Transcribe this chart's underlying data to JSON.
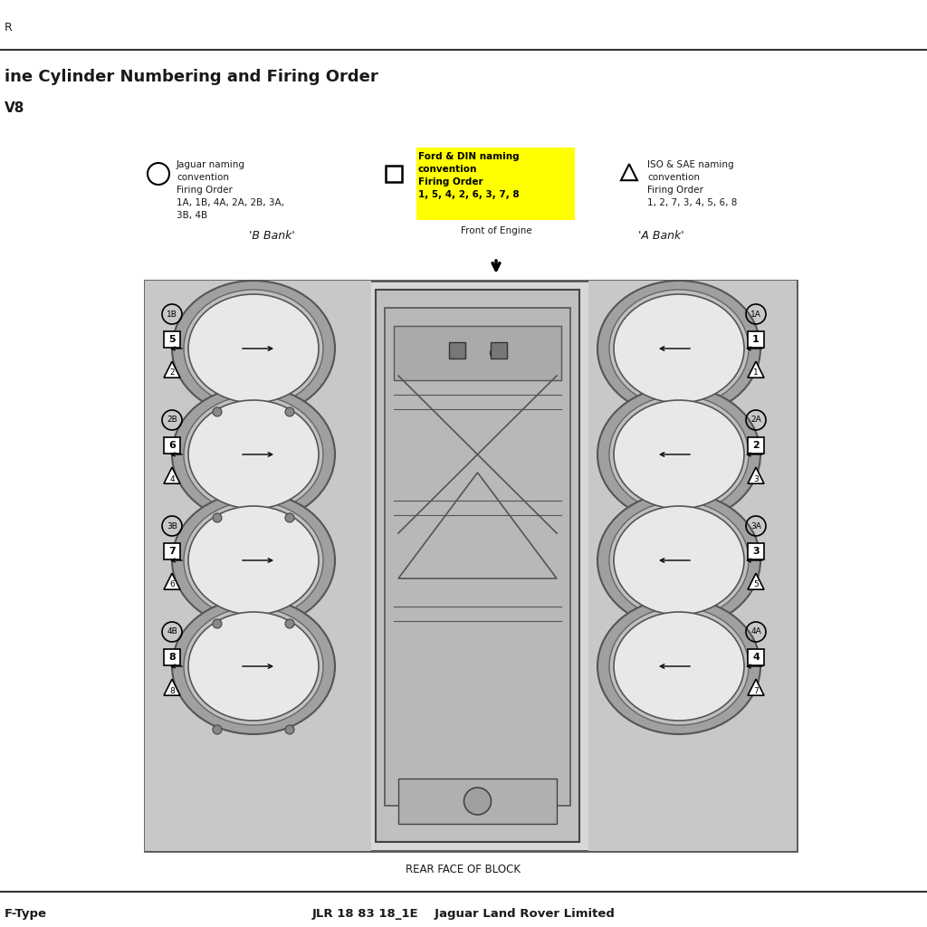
{
  "title": "ine Cylinder Numbering and Firing Order",
  "subtitle": "V8",
  "footer_left": "F-Type",
  "footer_center": "JLR 18 83 18_1E    Jaguar Land Rover Limited",
  "header_note": "R",
  "rear_face_label": "REAR FACE OF BLOCK",
  "jaguar_label": "Jaguar naming\nconvention\nFiring Order\n1A, 1B, 4A, 2A, 2B, 3A,\n3B, 4B",
  "ford_label": "Ford & DIN naming\nconvention\nFiring Order\n1, 5, 4, 2, 6, 3, 7, 8",
  "ford_sub": "Front of Engine",
  "iso_label": "ISO & SAE naming\nconvention\nFiring Order\n1, 2, 7, 3, 4, 5, 6, 8",
  "b_bank": "'B Bank'",
  "a_bank": "'A Bank'",
  "bg_color": "#ffffff",
  "highlight_yellow": "#ffff00",
  "text_color": "#1a1a1a",
  "b_labels": [
    [
      "1B",
      "5",
      "2"
    ],
    [
      "2B",
      "6",
      "4"
    ],
    [
      "3B",
      "7",
      "6"
    ],
    [
      "4B",
      "8",
      "8"
    ]
  ],
  "a_labels": [
    [
      "1A",
      "1",
      "1"
    ],
    [
      "2A",
      "2",
      "3"
    ],
    [
      "3A",
      "3",
      "5"
    ],
    [
      "4A",
      "4",
      "7"
    ]
  ]
}
